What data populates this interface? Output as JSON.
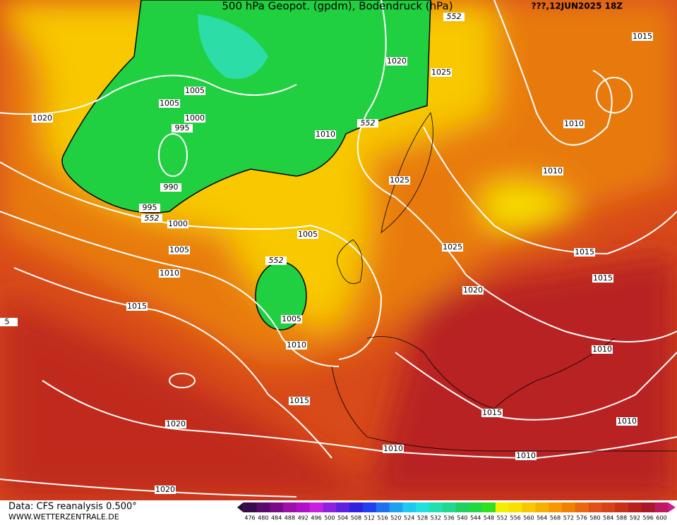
{
  "title": "500 hPa Geopot. (gpdm), Bodendruck (hPa)",
  "date": "???,12JUN2025 18Z",
  "source": "Data: CFS reanalysis 0.500°",
  "website": "WWW.WETTERZENTRALE.DE",
  "contour_labels": [
    552,
    1015,
    1020,
    1025,
    1005,
    1005,
    1000,
    1020,
    995,
    1010,
    552,
    1010,
    1010,
    1025,
    990,
    995,
    552,
    1000,
    1005,
    1025,
    1015,
    1005,
    1010,
    552,
    1015,
    1020,
    1015,
    1005,
    5,
    1010,
    1010,
    1015,
    1015,
    1020,
    1010,
    1010,
    1010,
    1020
  ],
  "colorbar": {
    "labels": [
      476,
      480,
      484,
      488,
      492,
      496,
      500,
      504,
      508,
      512,
      516,
      520,
      524,
      528,
      532,
      536,
      540,
      544,
      548,
      552,
      556,
      560,
      564,
      568,
      572,
      576,
      580,
      584,
      588,
      592,
      596,
      600
    ],
    "colors": [
      "#3a0a4a",
      "#5a0a6a",
      "#7a0a8a",
      "#9a10a8",
      "#b010c8",
      "#c820e0",
      "#9020e0",
      "#6020e0",
      "#3020e0",
      "#2040f0",
      "#2070f0",
      "#20a0f0",
      "#20c8f0",
      "#20e0e0",
      "#20e0b0",
      "#20d890",
      "#20d060",
      "#20d840",
      "#30e020",
      "#f0f000",
      "#f8e000",
      "#f8c800",
      "#f8b000",
      "#f89800",
      "#f08000",
      "#e86810",
      "#e05018",
      "#d84018",
      "#c83018",
      "#b82020",
      "#a81828",
      "#c01860"
    ]
  }
}
